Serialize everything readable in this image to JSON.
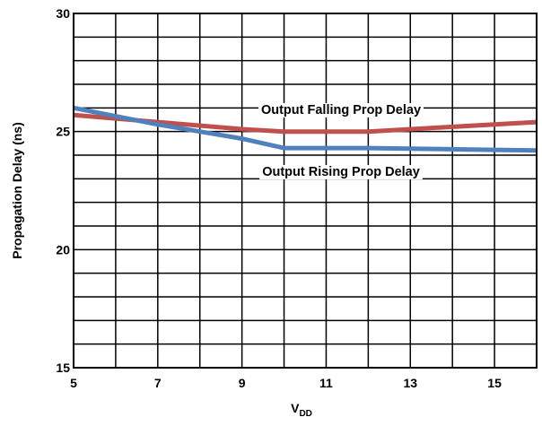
{
  "chart_data": {
    "type": "line",
    "xlabel_main": "V",
    "xlabel_sub": "DD",
    "ylabel": "Propagation Delay (ns)",
    "xlim": [
      5,
      16
    ],
    "ylim": [
      15,
      30
    ],
    "x_ticks": [
      "5",
      "7",
      "9",
      "11",
      "13",
      "15"
    ],
    "y_ticks": [
      "15",
      "20",
      "25",
      "30"
    ],
    "grid": true,
    "series": [
      {
        "name": "Output Falling Prop Delay",
        "color": "#c0504d",
        "x": [
          5,
          7,
          9,
          10,
          12,
          14,
          16
        ],
        "y": [
          25.7,
          25.4,
          25.1,
          25.0,
          25.0,
          25.2,
          25.4
        ]
      },
      {
        "name": "Output Rising Prop Delay",
        "color": "#4f81bd",
        "x": [
          5,
          7,
          9,
          10,
          12,
          14,
          16
        ],
        "y": [
          26.0,
          25.3,
          24.7,
          24.3,
          24.3,
          24.25,
          24.2
        ]
      }
    ],
    "annotations": [
      {
        "text": "Output Falling Prop Delay",
        "series": 0
      },
      {
        "text": "Output Rising Prop Delay",
        "series": 1
      }
    ]
  }
}
